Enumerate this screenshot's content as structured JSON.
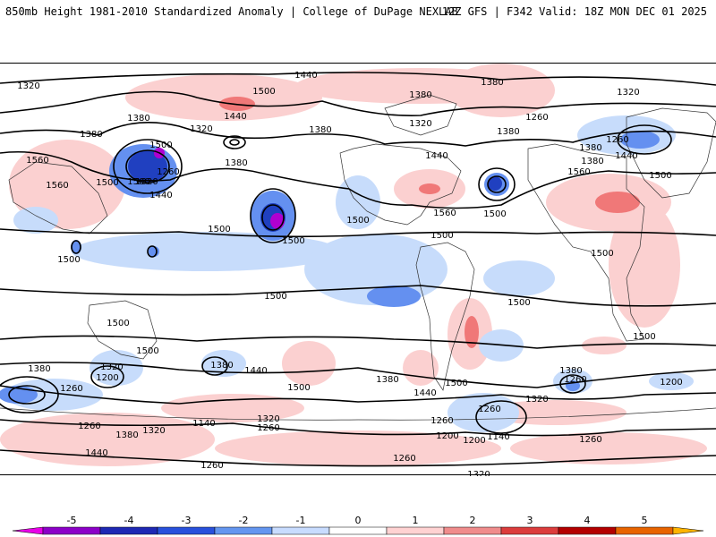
{
  "header": {
    "title": "850mb Height 1981-2010 Standardized Anomaly | College of DuPage NEXLAB",
    "run_info": "12Z GFS | F342 Valid: 18Z MON DEC 01 2025"
  },
  "map": {
    "contour_labels": {
      "n1": "1320",
      "n2": "1440",
      "n3": "1500",
      "n4": "1440",
      "n5": "1380",
      "n6": "1380",
      "n7": "1320",
      "n8": "1320",
      "n9": "1380",
      "n10": "1380",
      "n11": "1260",
      "n12": "1380",
      "n13": "1500",
      "n14": "1260",
      "n15": "1320",
      "n16": "1440",
      "n17": "1560",
      "n18": "1560",
      "n19": "1500",
      "n20": "1500",
      "n21": "1440",
      "n22": "1380",
      "n23": "1320",
      "n24": "1380",
      "n25": "1380",
      "n26": "1260",
      "n27": "1380",
      "n28": "1440",
      "n29": "1560",
      "n30": "1500",
      "n31": "1500",
      "n32": "1500",
      "n33": "1500",
      "n34": "1560",
      "n35": "1500",
      "t1": "1500",
      "t2": "1500",
      "t3": "1500",
      "t4": "1500",
      "t5": "1500",
      "t6": "1500",
      "t7": "1500",
      "s1": "1500",
      "s2": "1380",
      "s3": "1320",
      "s4": "1200",
      "s5": "1380",
      "s6": "1440",
      "s7": "1260",
      "s8": "1140",
      "s9": "1320",
      "s10": "1260",
      "s11": "1380",
      "s12": "1320",
      "s13": "1440",
      "s14": "1260",
      "s15": "1260",
      "s16": "1500",
      "s17": "1380",
      "s18": "1440",
      "s19": "1500",
      "s20": "1320",
      "s21": "1260",
      "s22": "1200",
      "s23": "1200",
      "s24": "1140",
      "s25": "1380",
      "s26": "1260",
      "s27": "1260",
      "s28": "1200",
      "s29": "1260",
      "s30": "1320",
      "s31": "1260"
    }
  },
  "colorbar": {
    "ticks": [
      "-5",
      "-4",
      "-3",
      "-2",
      "-1",
      "0",
      "1",
      "2",
      "3",
      "4",
      "5"
    ],
    "colors": [
      "#e800e8",
      "#8c00c8",
      "#1e28b4",
      "#2850dc",
      "#6496f0",
      "#c8dcff",
      "#ffffff",
      "#ffd2d2",
      "#f08c8c",
      "#dc3c3c",
      "#b40000",
      "#e86400",
      "#ffb400"
    ]
  }
}
